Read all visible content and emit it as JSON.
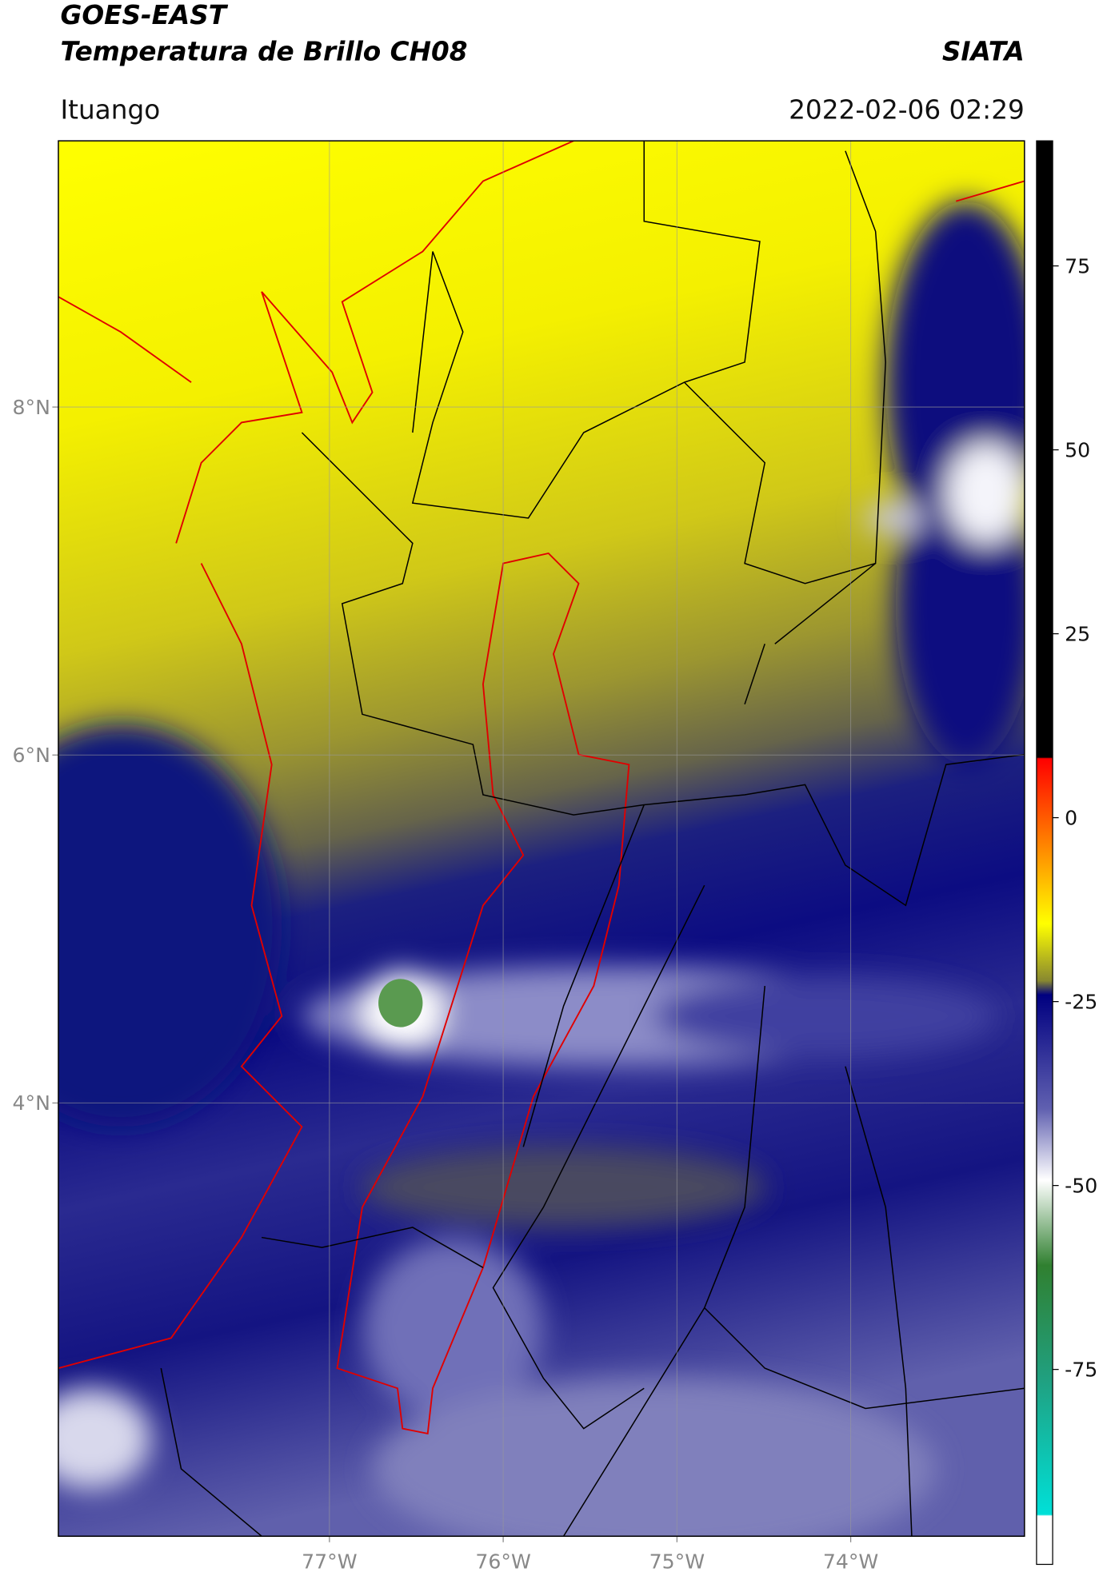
{
  "header": {
    "title_line1": "GOES-EAST",
    "title_line2": "Temperatura de Brillo CH08",
    "brand": "SIATA",
    "location": "Ituango",
    "timestamp": "2022-02-06 02:29"
  },
  "map": {
    "lonlim": [
      -78.56,
      -73.0
    ],
    "latlim": [
      1.51,
      9.53
    ],
    "lon_ticks": [
      {
        "value": -77,
        "label": "77°W"
      },
      {
        "value": -76,
        "label": "76°W"
      },
      {
        "value": -75,
        "label": "75°W"
      },
      {
        "value": -74,
        "label": "74°W"
      }
    ],
    "lat_ticks": [
      {
        "value": 8,
        "label": "8°N"
      },
      {
        "value": 6,
        "label": "6°N"
      },
      {
        "value": 4,
        "label": "4°N"
      }
    ]
  },
  "colorbar": {
    "lim": [
      -101.5,
      92
    ],
    "ticks": [
      75,
      50,
      25,
      0,
      -25,
      -50,
      -75
    ]
  }
}
